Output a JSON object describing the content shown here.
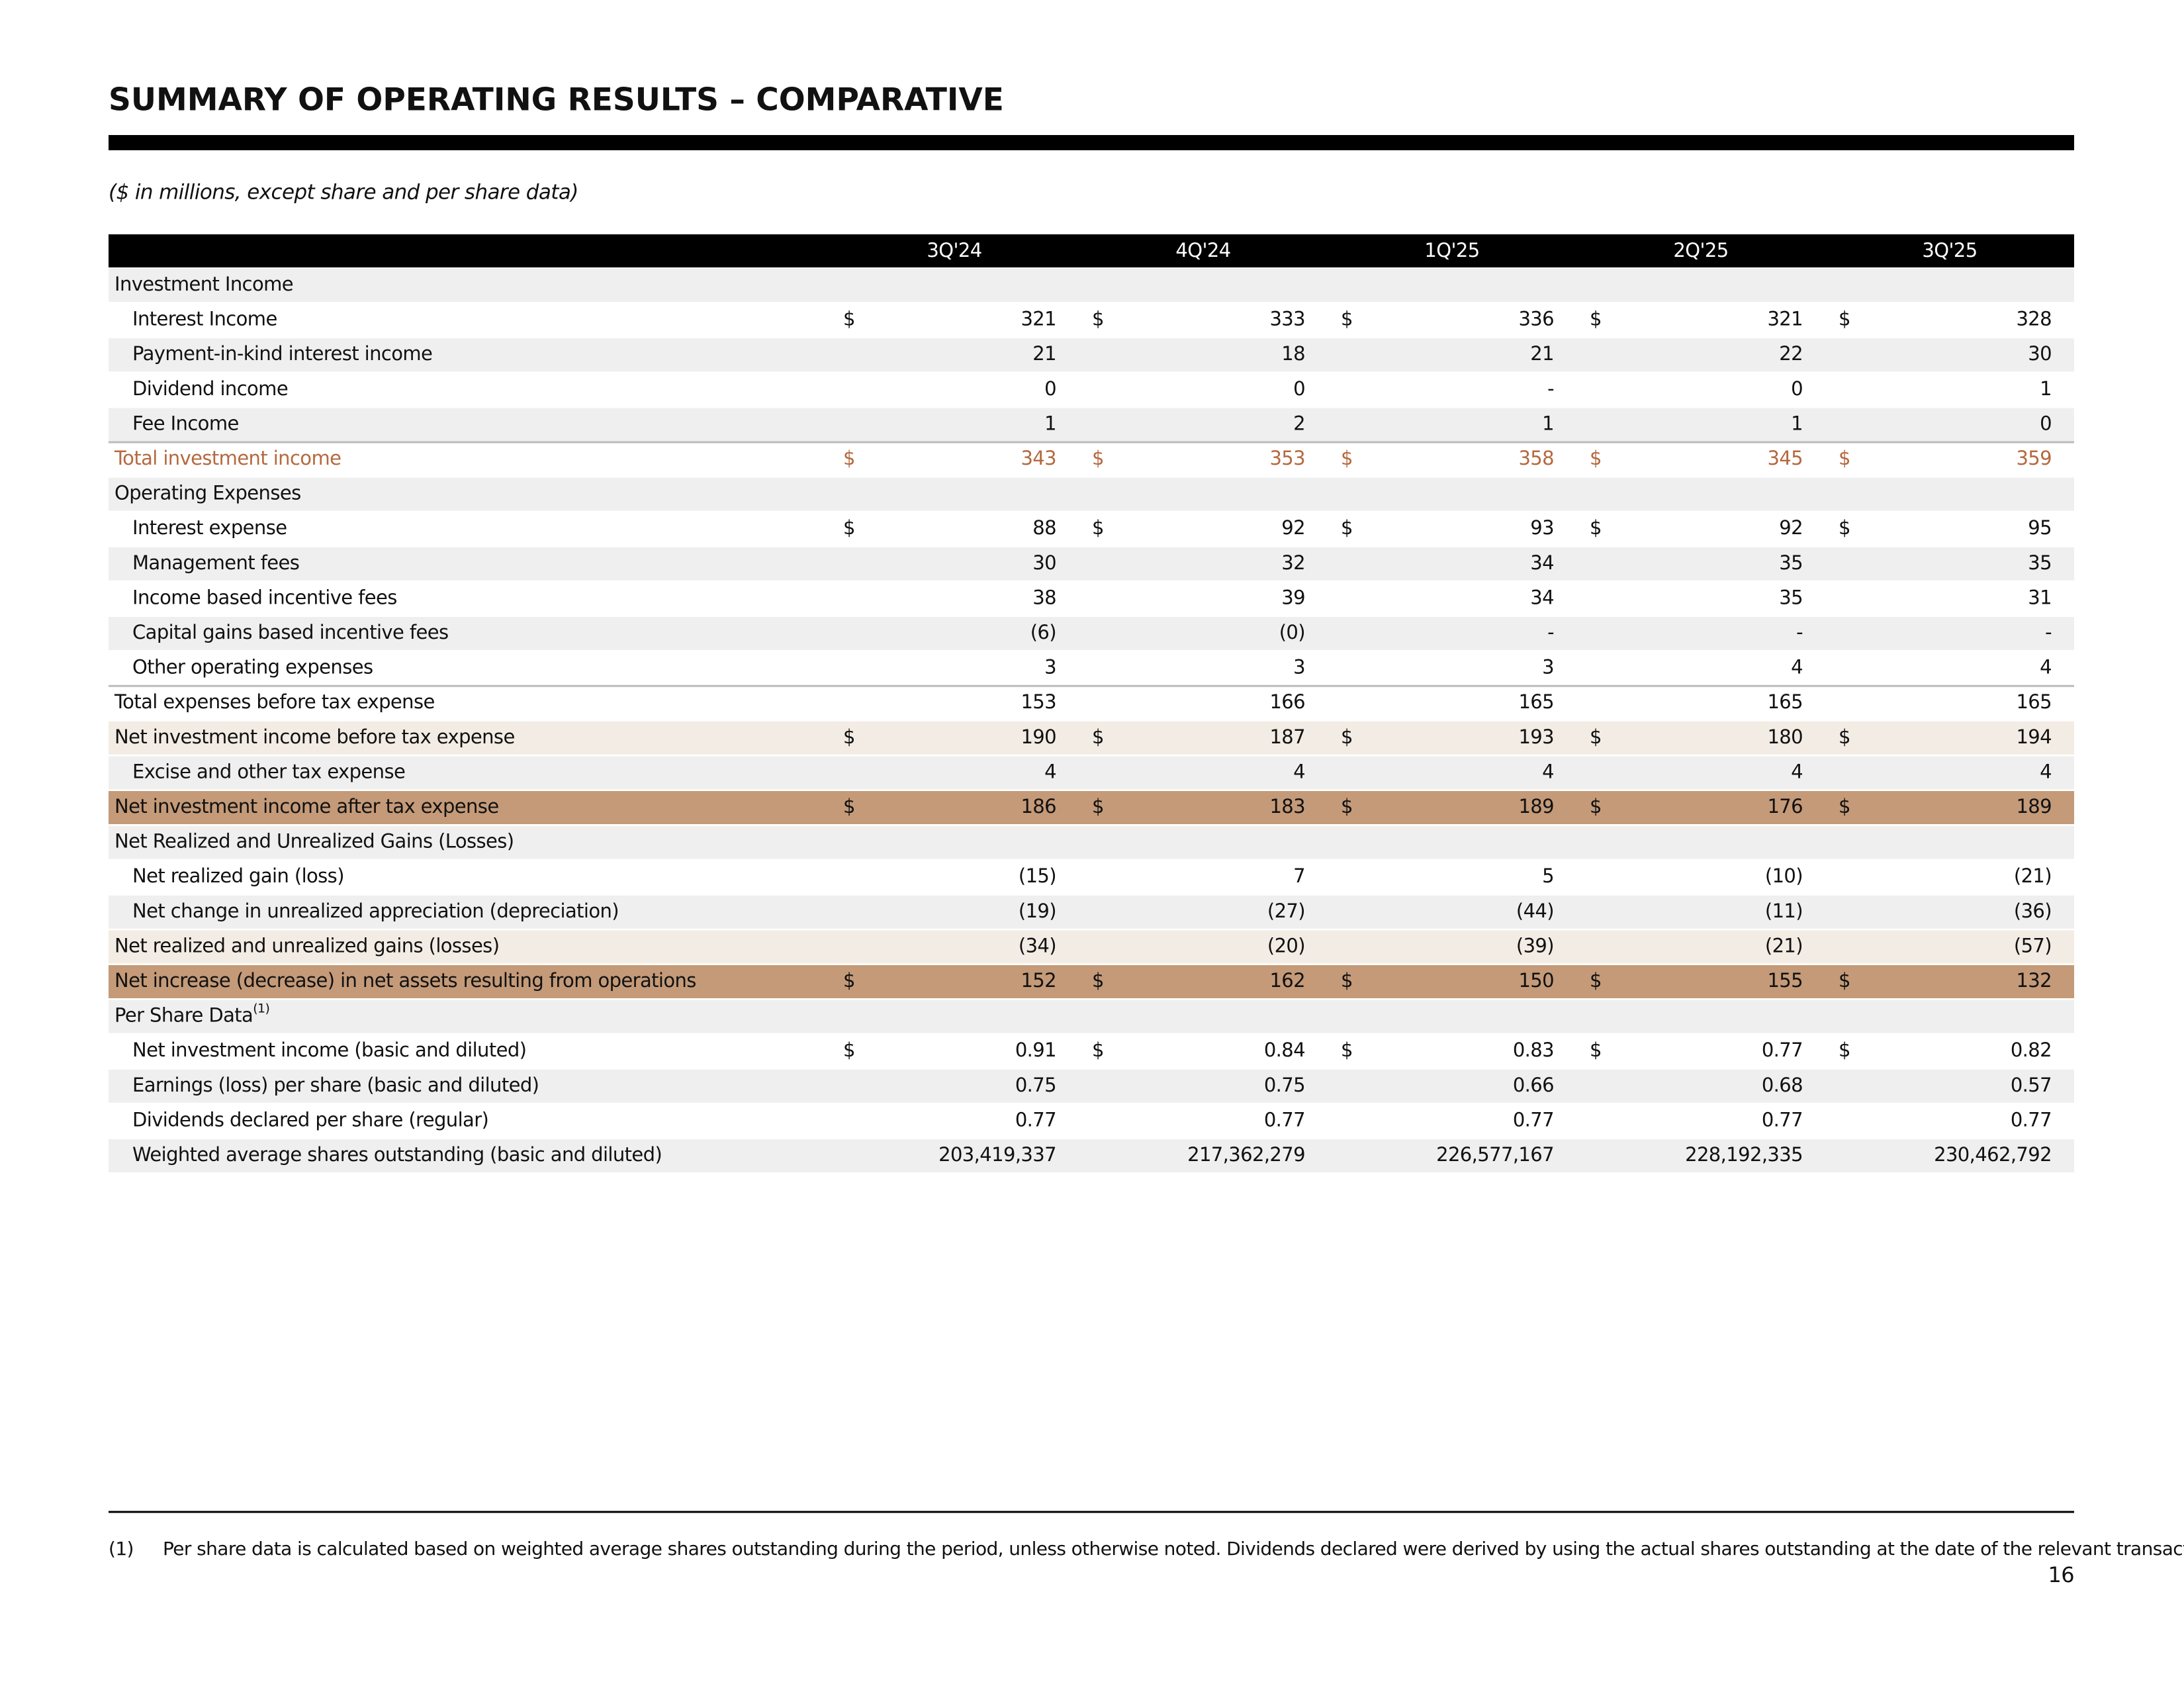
{
  "title": "SUMMARY OF OPERATING RESULTS – COMPARATIVE",
  "subtitle": "($ in millions, except share and per share data)",
  "currency_symbol": "$",
  "table": {
    "columns": [
      "3Q'24",
      "4Q'24",
      "1Q'25",
      "2Q'25",
      "3Q'25"
    ],
    "rows": [
      {
        "label": "Investment Income",
        "fill": "#efefef"
      },
      {
        "label": "Interest Income",
        "indent": true,
        "dollar": true,
        "cells": [
          "321",
          "333",
          "336",
          "321",
          "328"
        ]
      },
      {
        "label": "Payment-in-kind interest income",
        "indent": true,
        "fill": "#efefef",
        "cells": [
          "21",
          "18",
          "21",
          "22",
          "30"
        ]
      },
      {
        "label": "Dividend income",
        "indent": true,
        "cells": [
          "0",
          "0",
          "-",
          "0",
          "1"
        ]
      },
      {
        "label": "Fee Income",
        "indent": true,
        "fill": "#efefef",
        "cells": [
          "1",
          "2",
          "1",
          "1",
          "0"
        ]
      },
      {
        "label": "Total investment income",
        "dollar": true,
        "rule": true,
        "text_color": "#b5693f",
        "cells": [
          "343",
          "353",
          "358",
          "345",
          "359"
        ]
      },
      {
        "label": "Operating Expenses",
        "fill": "#efefef"
      },
      {
        "label": "Interest expense",
        "indent": true,
        "dollar": true,
        "cells": [
          "88",
          "92",
          "93",
          "92",
          "95"
        ]
      },
      {
        "label": "Management fees",
        "indent": true,
        "fill": "#efefef",
        "cells": [
          "30",
          "32",
          "34",
          "35",
          "35"
        ]
      },
      {
        "label": "Income based incentive fees",
        "indent": true,
        "cells": [
          "38",
          "39",
          "34",
          "35",
          "31"
        ]
      },
      {
        "label": "Capital gains based incentive fees",
        "indent": true,
        "fill": "#efefef",
        "cells": [
          "(6)",
          "(0)",
          "-",
          "-",
          "-"
        ]
      },
      {
        "label": "Other operating expenses",
        "indent": true,
        "cells": [
          "3",
          "3",
          "3",
          "4",
          "4"
        ]
      },
      {
        "label": "Total expenses before tax expense",
        "rule": true,
        "cells": [
          "153",
          "166",
          "165",
          "165",
          "165"
        ]
      },
      {
        "label": "Net investment income before tax expense",
        "dollar": true,
        "fill": "#f3ece4",
        "cells": [
          "190",
          "187",
          "193",
          "180",
          "194"
        ]
      },
      {
        "label": "Excise and other tax expense",
        "indent": true,
        "fill": "#efefef",
        "cells": [
          "4",
          "4",
          "4",
          "4",
          "4"
        ]
      },
      {
        "label": "Net investment income after tax expense",
        "dollar": true,
        "fill": "#c49a78",
        "cells": [
          "186",
          "183",
          "189",
          "176",
          "189"
        ]
      },
      {
        "label": "Net Realized and Unrealized Gains (Losses)",
        "fill": "#efefef"
      },
      {
        "label": "Net realized gain (loss)",
        "indent": true,
        "cells": [
          "(15)",
          "7",
          "5",
          "(10)",
          "(21)"
        ]
      },
      {
        "label": "Net change in unrealized appreciation (depreciation)",
        "indent": true,
        "fill": "#efefef",
        "cells": [
          "(19)",
          "(27)",
          "(44)",
          "(11)",
          "(36)"
        ]
      },
      {
        "label": "Net realized and unrealized gains (losses)",
        "fill": "#f3ece4",
        "cells": [
          "(34)",
          "(20)",
          "(39)",
          "(21)",
          "(57)"
        ]
      },
      {
        "label": "Net increase (decrease) in net assets resulting from operations",
        "dollar": true,
        "fill": "#c49a78",
        "cells": [
          "152",
          "162",
          "150",
          "155",
          "132"
        ]
      },
      {
        "label": "Per Share Data",
        "note": "(1)",
        "fill": "#efefef"
      },
      {
        "label": "Net investment income (basic and diluted)",
        "indent": true,
        "dollar": true,
        "cells": [
          "0.91",
          "0.84",
          "0.83",
          "0.77",
          "0.82"
        ]
      },
      {
        "label": "Earnings (loss) per share (basic and diluted)",
        "indent": true,
        "fill": "#efefef",
        "cells": [
          "0.75",
          "0.75",
          "0.66",
          "0.68",
          "0.57"
        ]
      },
      {
        "label": "Dividends declared per share (regular)",
        "indent": true,
        "cells": [
          "0.77",
          "0.77",
          "0.77",
          "0.77",
          "0.77"
        ]
      },
      {
        "label": "Weighted average shares outstanding (basic and diluted)",
        "indent": true,
        "fill": "#efefef",
        "cells": [
          "203,419,337",
          "217,362,279",
          "226,577,167",
          "228,192,335",
          "230,462,792"
        ]
      }
    ]
  },
  "footnote": {
    "marker": "(1)",
    "text": "Per share data is calculated based on weighted average shares outstanding during the period, unless otherwise noted. Dividends declared were derived by using the actual shares outstanding at the date of the relevant transactions."
  },
  "page_number": "16"
}
